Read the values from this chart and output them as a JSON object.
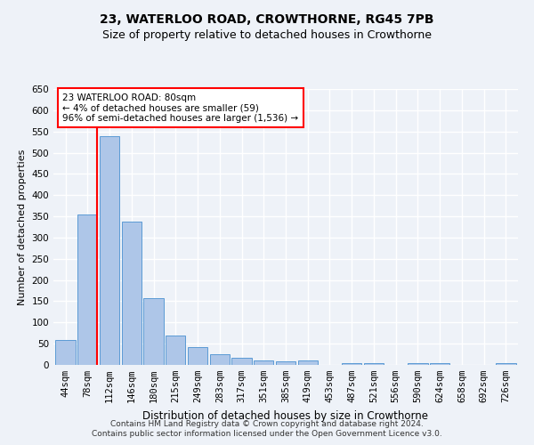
{
  "title1": "23, WATERLOO ROAD, CROWTHORNE, RG45 7PB",
  "title2": "Size of property relative to detached houses in Crowthorne",
  "xlabel": "Distribution of detached houses by size in Crowthorne",
  "ylabel": "Number of detached properties",
  "categories": [
    "44sqm",
    "78sqm",
    "112sqm",
    "146sqm",
    "180sqm",
    "215sqm",
    "249sqm",
    "283sqm",
    "317sqm",
    "351sqm",
    "385sqm",
    "419sqm",
    "453sqm",
    "487sqm",
    "521sqm",
    "556sqm",
    "590sqm",
    "624sqm",
    "658sqm",
    "692sqm",
    "726sqm"
  ],
  "values": [
    58,
    355,
    538,
    337,
    157,
    70,
    42,
    25,
    17,
    10,
    8,
    10,
    0,
    5,
    5,
    0,
    5,
    5,
    0,
    0,
    5
  ],
  "bar_color": "#aec6e8",
  "bar_edge_color": "#5b9bd5",
  "annotation_text": "23 WATERLOO ROAD: 80sqm\n← 4% of detached houses are smaller (59)\n96% of semi-detached houses are larger (1,536) →",
  "annotation_box_color": "white",
  "annotation_box_edge_color": "red",
  "vline_color": "red",
  "ylim": [
    0,
    650
  ],
  "yticks": [
    0,
    50,
    100,
    150,
    200,
    250,
    300,
    350,
    400,
    450,
    500,
    550,
    600,
    650
  ],
  "footer1": "Contains HM Land Registry data © Crown copyright and database right 2024.",
  "footer2": "Contains public sector information licensed under the Open Government Licence v3.0.",
  "background_color": "#eef2f8",
  "plot_bg_color": "#eef2f8",
  "grid_color": "white",
  "title1_fontsize": 10,
  "title2_fontsize": 9,
  "xlabel_fontsize": 8.5,
  "ylabel_fontsize": 8,
  "tick_fontsize": 7.5,
  "footer_fontsize": 6.5
}
